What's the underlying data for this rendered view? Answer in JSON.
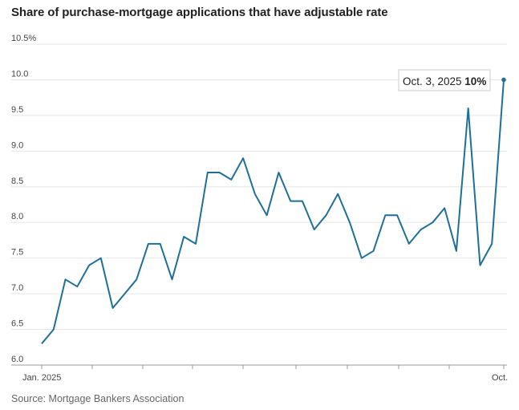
{
  "title": "Share of purchase-mortgage applications that have adjustable rate",
  "source": "Source: Mortgage Bankers Association",
  "chart_data": {
    "type": "line",
    "title": "Share of purchase-mortgage applications that have adjustable rate",
    "xlabel": "",
    "ylabel": "",
    "ylim": [
      6.0,
      10.5
    ],
    "y_ticks": [
      "6.0",
      "6.5",
      "7.0",
      "7.5",
      "8.0",
      "8.5",
      "9.0",
      "9.5",
      "10.0",
      "10.5%"
    ],
    "x_tick_labels": [
      "Jan. 2025",
      "Oct."
    ],
    "grid": "horizontal",
    "line_color": "#1f6f98",
    "series": [
      {
        "values": [
          6.3,
          6.5,
          7.2,
          7.1,
          7.4,
          7.5,
          6.8,
          7.0,
          7.2,
          7.7,
          7.7,
          7.2,
          7.8,
          7.7,
          8.7,
          8.7,
          8.6,
          8.9,
          8.4,
          8.1,
          8.7,
          8.3,
          8.3,
          7.9,
          8.1,
          8.4,
          8.0,
          7.5,
          7.6,
          8.1,
          8.1,
          7.7,
          7.9,
          8.0,
          8.2,
          7.6,
          9.6,
          7.4,
          7.7,
          10.0
        ]
      }
    ],
    "annotation": {
      "date": "Oct. 3, 2025",
      "value": "10%"
    }
  }
}
